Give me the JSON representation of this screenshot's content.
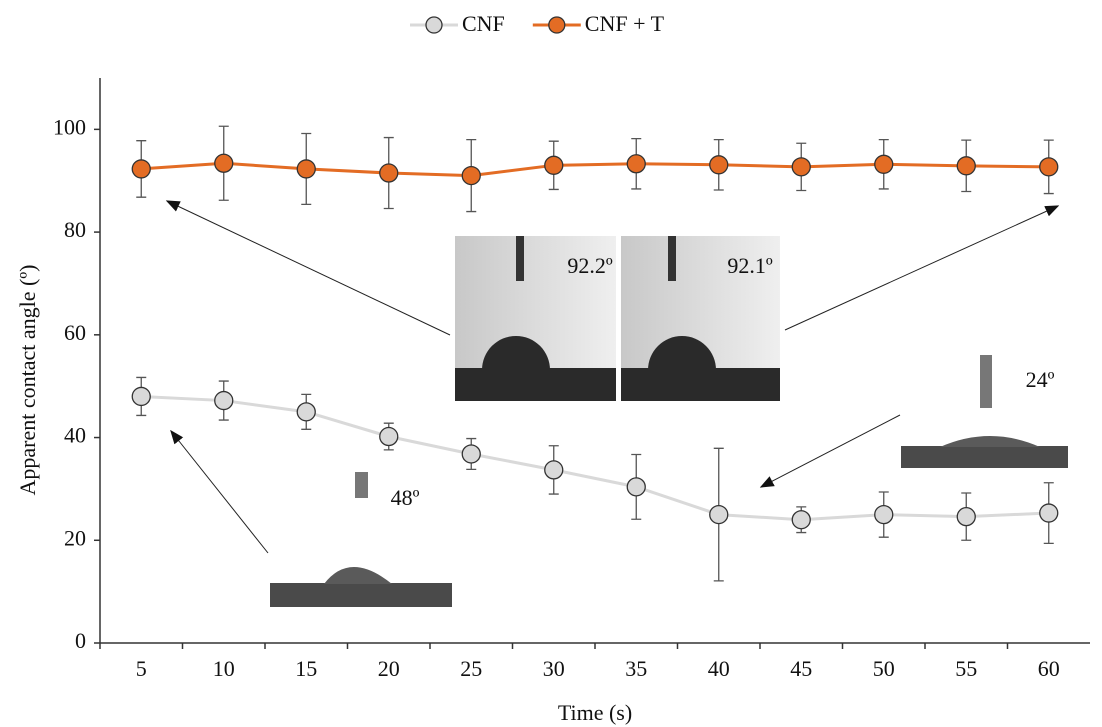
{
  "chart_data": {
    "type": "line",
    "x_label": "Time (s)",
    "y_label": "Apparent contact angle (º)",
    "categories": [
      "5",
      "10",
      "15",
      "20",
      "25",
      "30",
      "35",
      "40",
      "45",
      "50",
      "55",
      "60"
    ],
    "ylim": [
      0,
      110
    ],
    "yticks": [
      0,
      20,
      40,
      60,
      80,
      100
    ],
    "legend_position": "top",
    "series": [
      {
        "name": "CNF",
        "color": "#d9d9d9",
        "values": [
          48.0,
          47.2,
          45.0,
          40.2,
          36.8,
          33.7,
          30.4,
          25.0,
          24.0,
          25.0,
          24.6,
          25.3
        ],
        "errors": [
          3.7,
          3.8,
          3.4,
          2.6,
          3.0,
          4.7,
          6.3,
          12.9,
          2.5,
          4.4,
          4.6,
          5.9
        ]
      },
      {
        "name": "CNF + T",
        "color": "#e36c24",
        "values": [
          92.3,
          93.4,
          92.3,
          91.5,
          91.0,
          93.0,
          93.3,
          93.1,
          92.7,
          93.2,
          92.9,
          92.7
        ],
        "errors": [
          5.5,
          7.2,
          6.9,
          6.9,
          7.0,
          4.7,
          4.9,
          4.9,
          4.6,
          4.8,
          5.0,
          5.2
        ]
      }
    ],
    "annotations": [
      "92.2º",
      "92.1º",
      "48º",
      "24º"
    ]
  }
}
